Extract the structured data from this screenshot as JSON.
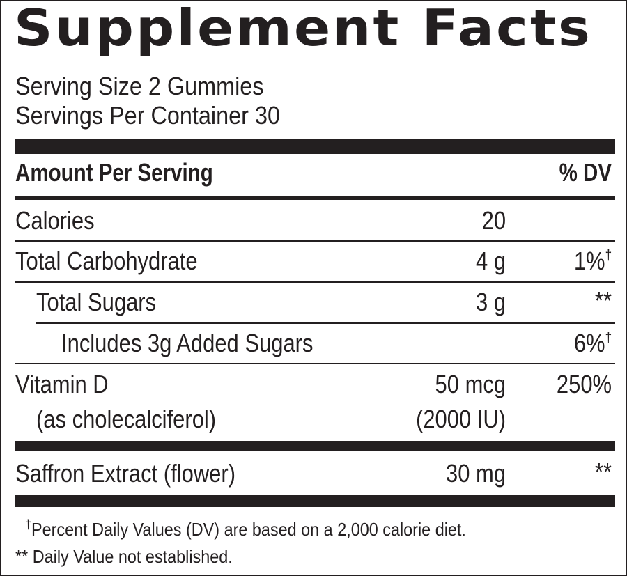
{
  "title": "Supplement Facts",
  "serving_size": "Serving Size 2 Gummies",
  "servings_per_container": "Servings Per Container 30",
  "header": {
    "amount": "Amount Per Serving",
    "dv": "% DV"
  },
  "rows": [
    {
      "name": "Calories",
      "amount": "20",
      "dv": ""
    },
    {
      "name": "Total Carbohydrate",
      "amount": "4 g",
      "dv": "1%",
      "dv_mark": "†"
    },
    {
      "name": "Total Sugars",
      "amount": "3 g",
      "dv": "**"
    },
    {
      "name": "Includes 3g Added Sugars",
      "amount": "",
      "dv": "6%",
      "dv_mark": "†"
    },
    {
      "name": "Vitamin D",
      "sub": "(as cholecalciferol)",
      "amount": "50 mcg",
      "amount_sub": "(2000 IU)",
      "dv": "250%"
    },
    {
      "name": "Saffron Extract (flower)",
      "amount": "30 mg",
      "dv": "**"
    }
  ],
  "footnotes": {
    "dagger_mark": "†",
    "dagger_text": "Percent Daily Values (DV) are based on a 2,000 calorie diet.",
    "star_mark": "**",
    "star_text": "Daily Value not established."
  },
  "colors": {
    "ink": "#231f20",
    "background": "#ffffff"
  }
}
